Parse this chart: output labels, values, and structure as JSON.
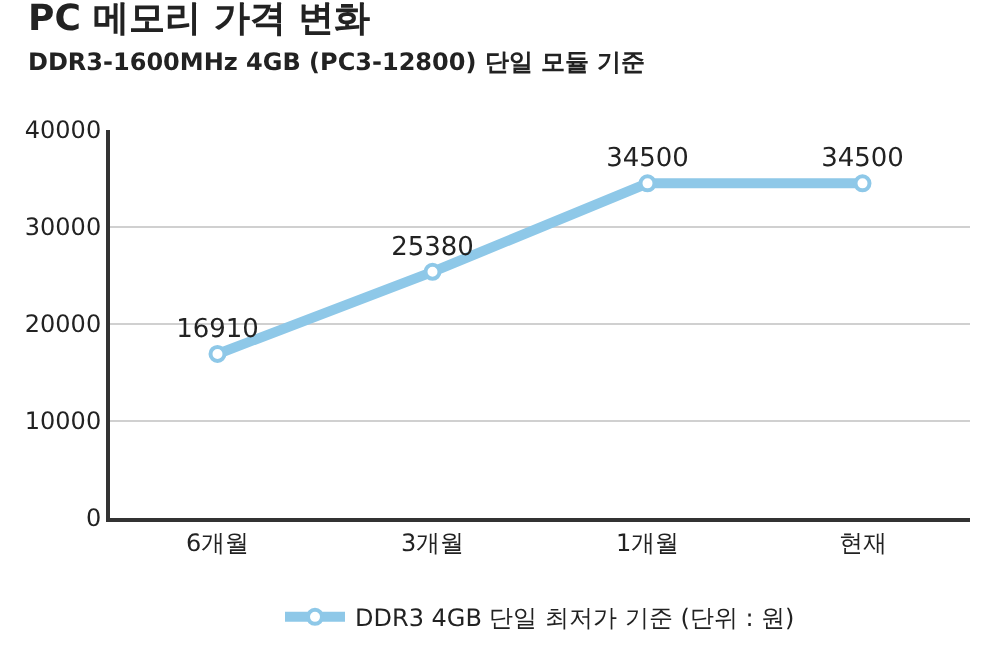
{
  "chart_data": {
    "type": "line",
    "title": "PC 메모리 가격 변화",
    "subtitle": "DDR3-1600MHz 4GB (PC3-12800) 단일 모듈 기준",
    "categories": [
      "6개월",
      "3개월",
      "1개월",
      "현재"
    ],
    "series": [
      {
        "name": "DDR3 4GB 단일 최저가 기준 (단위 : 원)",
        "color": "#8ec8e8",
        "values": [
          16910,
          25380,
          34500,
          34500
        ]
      }
    ],
    "ylim": [
      0,
      40000
    ],
    "yticks": [
      0,
      10000,
      20000,
      30000,
      40000
    ],
    "grid": "y",
    "legend": "bottom",
    "marker": "circle",
    "line_style": "solid",
    "data_labels": true
  }
}
